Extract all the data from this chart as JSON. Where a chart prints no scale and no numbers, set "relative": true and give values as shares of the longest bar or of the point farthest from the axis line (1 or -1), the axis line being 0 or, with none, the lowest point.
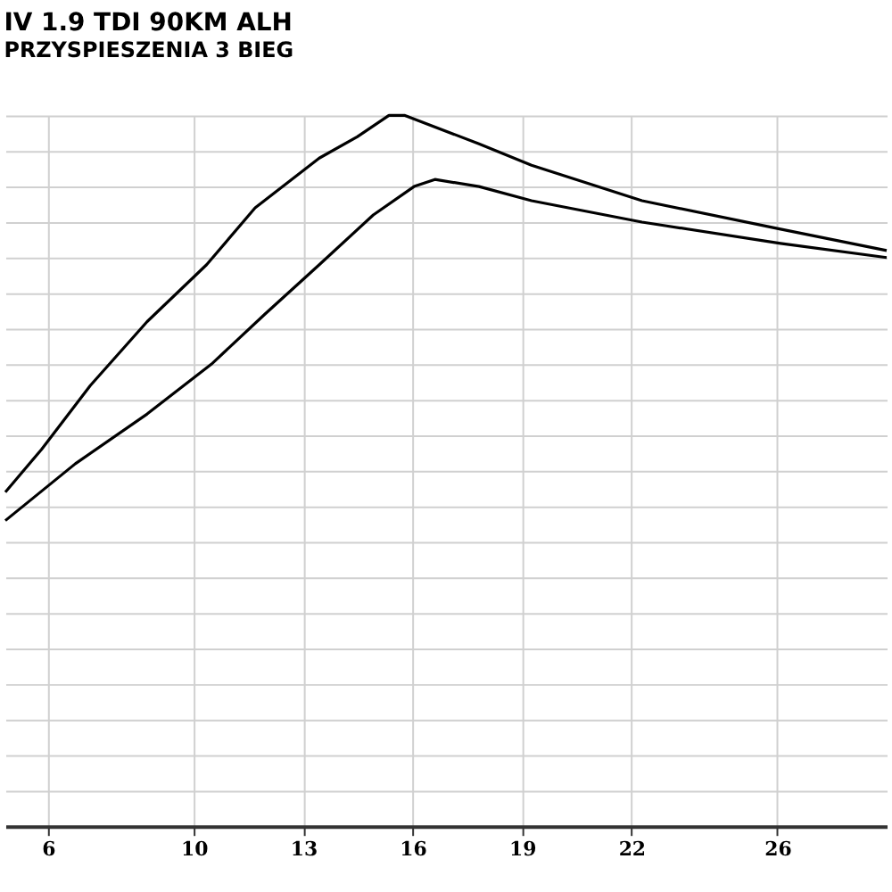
{
  "chart_data": {
    "type": "line",
    "title": "IV 1.9 TDI 90KM ALH",
    "subtitle": "PRZYSPIESZENIA 3 BIEG",
    "relative": true,
    "xlim": [
      4.83,
      29.0
    ],
    "xticks": [
      6,
      10,
      13,
      16,
      19,
      22,
      26
    ],
    "grid": true,
    "line_style": "solid",
    "series": [
      {
        "color": "#000000",
        "x": [
          4.83,
          5.82,
          7.16,
          8.72,
          10.35,
          11.68,
          13.44,
          14.48,
          15.35,
          15.79,
          17.82,
          19.26,
          22.29,
          26.09,
          29.0
        ],
        "values": [
          0.47,
          0.53,
          0.62,
          0.71,
          0.79,
          0.87,
          0.94,
          0.97,
          1.0,
          1.0,
          0.96,
          0.93,
          0.88,
          0.84,
          0.81
        ]
      },
      {
        "color": "#000000",
        "x": [
          4.83,
          6.75,
          8.72,
          10.48,
          11.94,
          13.44,
          14.92,
          16.04,
          16.61,
          17.82,
          19.26,
          22.29,
          26.09,
          29.0
        ],
        "values": [
          0.43,
          0.51,
          0.58,
          0.65,
          0.72,
          0.79,
          0.86,
          0.9,
          0.91,
          0.9,
          0.88,
          0.85,
          0.82,
          0.8
        ]
      }
    ]
  }
}
